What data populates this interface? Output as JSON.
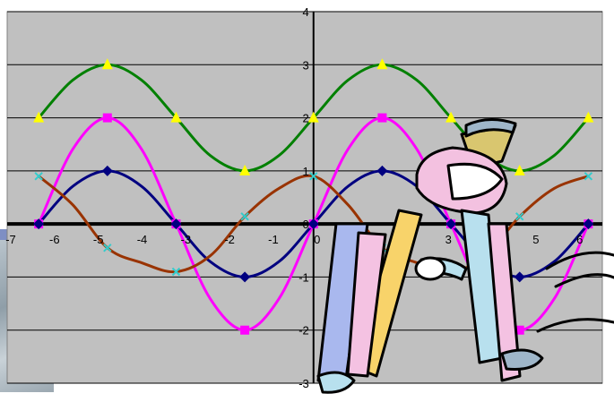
{
  "chart_data": {
    "type": "line",
    "title": "",
    "xlabel": "",
    "ylabel": "",
    "xlim": [
      -7,
      6.6
    ],
    "ylim": [
      -3,
      4
    ],
    "grid": true,
    "plot_background": "#c0c0c0",
    "x_tick_labels": [
      "-7",
      "-6",
      "-5",
      "-4",
      "-3",
      "-2",
      "-1",
      "0",
      "1",
      "2",
      "3",
      "4",
      "5",
      "6"
    ],
    "y_tick_labels": [
      "-3",
      "-2",
      "-1",
      "0",
      "1",
      "2",
      "3",
      "4"
    ],
    "series": [
      {
        "color": "#008000",
        "marker": "triangle",
        "marker_color": "#ffff00",
        "x": [
          -6.28,
          -5.5,
          -4.71,
          -3.93,
          -3.14,
          -2.36,
          -1.57,
          -0.79,
          0,
          0.79,
          1.57,
          2.36,
          3.14,
          3.93,
          4.71,
          5.5,
          6.28
        ],
        "y": [
          2,
          2.71,
          3,
          2.71,
          2,
          1.29,
          1,
          1.29,
          2,
          2.71,
          3,
          2.71,
          2,
          1.29,
          1,
          1.29,
          2
        ],
        "marked_points": [
          [
            -6.28,
            2
          ],
          [
            -4.71,
            3
          ],
          [
            -3.14,
            2
          ],
          [
            -1.57,
            1
          ],
          [
            0,
            2
          ],
          [
            1.57,
            3
          ],
          [
            3.14,
            2
          ],
          [
            4.71,
            1
          ],
          [
            6.28,
            2
          ]
        ]
      },
      {
        "color": "#ff00ff",
        "marker": "square",
        "marker_color": "#ff00ff",
        "x": [
          -6.28,
          -5.5,
          -4.71,
          -3.93,
          -3.14,
          -2.36,
          -1.57,
          -0.79,
          0,
          0.79,
          1.57,
          2.36,
          3.14,
          3.93,
          4.71,
          5.5,
          6.28
        ],
        "y": [
          0,
          1.41,
          2,
          1.41,
          0,
          -1.41,
          -2,
          -1.41,
          0,
          1.41,
          2,
          1.41,
          0,
          -1.41,
          -2,
          -1.41,
          0
        ],
        "marked_points": [
          [
            -6.28,
            0
          ],
          [
            -4.71,
            2
          ],
          [
            -3.14,
            0
          ],
          [
            -1.57,
            -2
          ],
          [
            0,
            0
          ],
          [
            1.57,
            2
          ],
          [
            3.14,
            0
          ],
          [
            4.71,
            -2
          ],
          [
            6.28,
            0
          ]
        ]
      },
      {
        "color": "#000080",
        "marker": "diamond",
        "marker_color": "#000080",
        "x": [
          -6.28,
          -5.5,
          -4.71,
          -3.93,
          -3.14,
          -2.36,
          -1.57,
          -0.79,
          0,
          0.79,
          1.57,
          2.36,
          3.14,
          3.93,
          4.71,
          5.5,
          6.28
        ],
        "y": [
          0,
          0.71,
          1,
          0.71,
          0,
          -0.71,
          -1,
          -0.71,
          0,
          0.71,
          1,
          0.71,
          0,
          -0.71,
          -1,
          -0.71,
          0
        ],
        "marked_points": [
          [
            -6.28,
            0
          ],
          [
            -4.71,
            1
          ],
          [
            -3.14,
            0
          ],
          [
            -1.57,
            -1
          ],
          [
            0,
            0
          ],
          [
            1.57,
            1
          ],
          [
            3.14,
            0
          ],
          [
            4.71,
            -1
          ],
          [
            6.28,
            0
          ]
        ]
      },
      {
        "color": "#993300",
        "marker": "cross",
        "marker_color": "#33cccc",
        "x": [
          -6.28,
          -5.5,
          -4.71,
          -3.93,
          -3.14,
          -2.36,
          -1.57,
          -0.79,
          0,
          0.79,
          1.57,
          2.36,
          3.14,
          3.93,
          4.71,
          5.5,
          6.28
        ],
        "y": [
          0.9,
          0.36,
          -0.45,
          -0.73,
          -0.9,
          -0.6,
          0.14,
          0.67,
          0.9,
          0.36,
          -0.45,
          -0.73,
          -0.9,
          -0.6,
          0.14,
          0.67,
          0.9
        ],
        "marked_points": [
          [
            -6.28,
            0.9
          ],
          [
            -4.71,
            -0.45
          ],
          [
            -3.14,
            -0.9
          ],
          [
            -1.57,
            0.14
          ],
          [
            0,
            0.9
          ],
          [
            1.57,
            -0.45
          ],
          [
            3.14,
            -0.9
          ],
          [
            4.71,
            0.14
          ],
          [
            6.28,
            0.9
          ]
        ]
      }
    ]
  },
  "decoration": {
    "clipart": "painter-figure-clipart",
    "background_photo": "textured-photo-strip",
    "accent_bar_color": "#7e8fc4"
  }
}
